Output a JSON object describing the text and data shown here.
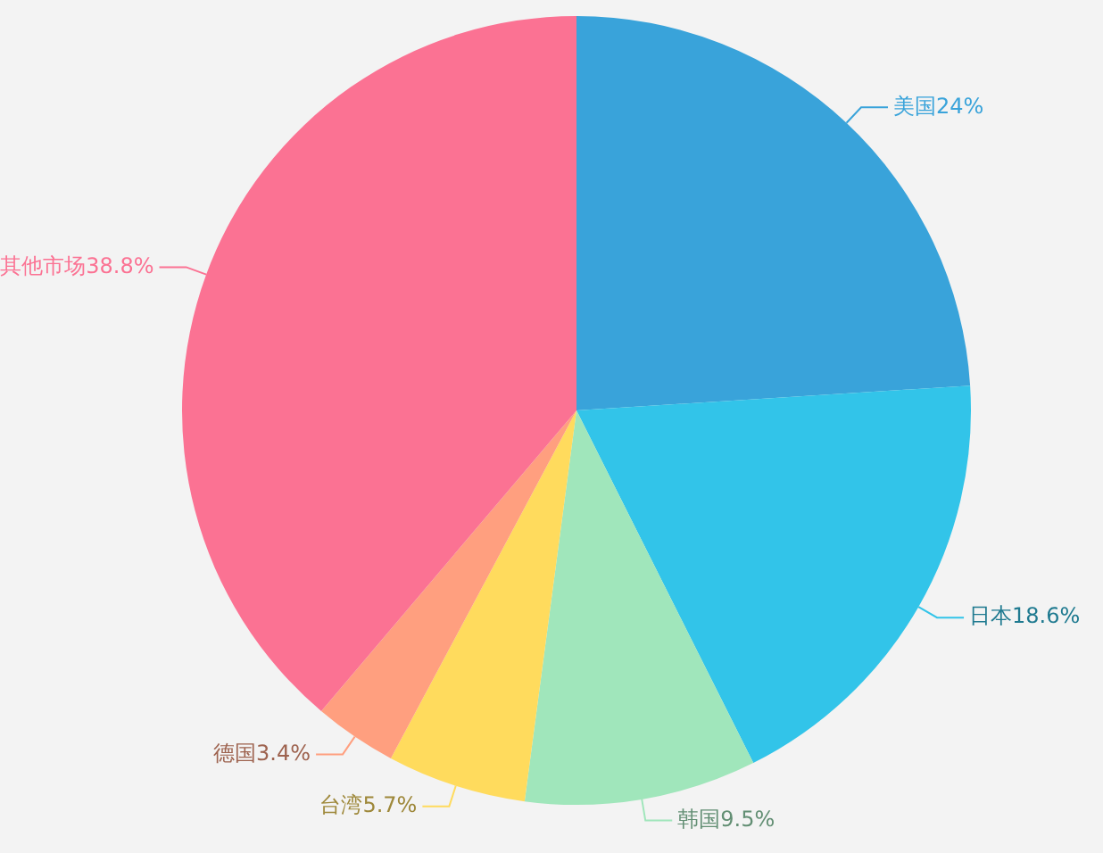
{
  "chart_data": {
    "type": "pie",
    "categories": [
      "美国",
      "日本",
      "韩国",
      "台湾",
      "德国",
      "其他市场"
    ],
    "values": [
      24,
      18.6,
      9.5,
      5.7,
      3.4,
      38.8
    ],
    "colors": [
      "#39a3da",
      "#32c4e9",
      "#a0e6bb",
      "#ffdb5d",
      "#ff9f7f",
      "#fb7293"
    ],
    "value_labels": [
      "24%",
      "18.6%",
      "9.5%",
      "5.7%",
      "3.4%",
      "38.8%"
    ],
    "legend": false
  }
}
